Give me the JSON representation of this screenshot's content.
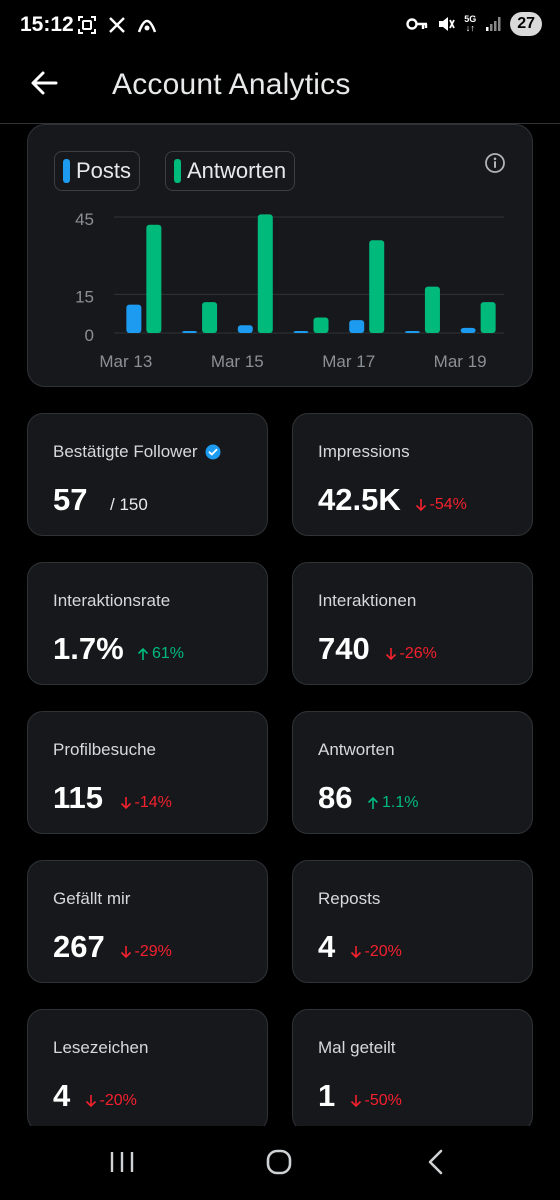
{
  "status_bar": {
    "time": "15:12",
    "battery": "27",
    "network": "5G",
    "icons": [
      "screenshot-icon",
      "x-logo-icon",
      "app-icon",
      "key-icon",
      "mute-icon",
      "signal-icon"
    ]
  },
  "header": {
    "title": "Account Analytics",
    "back_icon": "arrow-left-icon"
  },
  "chart": {
    "legend": [
      {
        "name": "Posts",
        "color": "#1d9bf0"
      },
      {
        "name": "Antworten",
        "color": "#00ba7c"
      }
    ],
    "info_icon": "info-icon"
  },
  "chart_data": {
    "type": "bar",
    "x": [
      "Mar 13",
      "Mar 14",
      "Mar 15",
      "Mar 16",
      "Mar 17",
      "Mar 18",
      "Mar 19"
    ],
    "x_tick_labels": [
      "Mar 13",
      "Mar 15",
      "Mar 17",
      "Mar 19"
    ],
    "series": [
      {
        "name": "Posts",
        "values": [
          11,
          0.5,
          3,
          0.5,
          5,
          0.5,
          2
        ]
      },
      {
        "name": "Antworten",
        "values": [
          42,
          12,
          46,
          6,
          36,
          18,
          12
        ]
      }
    ],
    "y_ticks": [
      0,
      15,
      45
    ],
    "ylim": [
      0,
      48
    ],
    "grid": true,
    "legend_position": "top-left"
  },
  "stats": [
    {
      "label": "Bestätigte Follower",
      "value": "57",
      "extra": "/ 150",
      "verified": true
    },
    {
      "label": "Impressions",
      "value": "42.5K",
      "delta": "-54%",
      "direction": "down"
    },
    {
      "label": "Interaktionsrate",
      "value": "1.7%",
      "delta": "61%",
      "direction": "up"
    },
    {
      "label": "Interaktionen",
      "value": "740",
      "delta": "-26%",
      "direction": "down"
    },
    {
      "label": "Profilbesuche",
      "value": "115",
      "delta": "-14%",
      "direction": "down"
    },
    {
      "label": "Antworten",
      "value": "86",
      "delta": "1.1%",
      "direction": "up"
    },
    {
      "label": "Gefällt mir",
      "value": "267",
      "delta": "-29%",
      "direction": "down"
    },
    {
      "label": "Reposts",
      "value": "4",
      "delta": "-20%",
      "direction": "down"
    },
    {
      "label": "Lesezeichen",
      "value": "4",
      "delta": "-20%",
      "direction": "down"
    },
    {
      "label": "Mal geteilt",
      "value": "1",
      "delta": "-50%",
      "direction": "down"
    }
  ],
  "colors": {
    "background": "#000000",
    "card": "#16181c",
    "border": "#2f3336",
    "negative": "#f4212e",
    "positive": "#00ba7c",
    "accent": "#1d9bf0"
  },
  "navbar": {
    "icons": [
      "recent-apps-icon",
      "home-icon",
      "back-icon"
    ]
  }
}
